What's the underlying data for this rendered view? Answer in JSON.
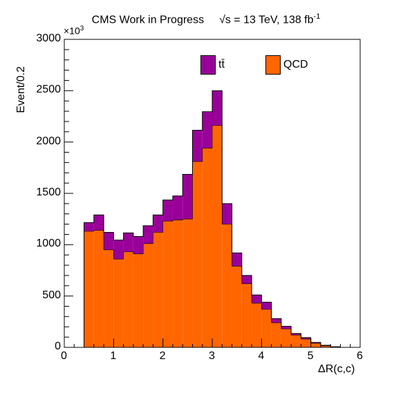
{
  "chart_data": {
    "type": "bar",
    "stacked": true,
    "title_left": "CMS Work in Progress",
    "title_sqrt": "√s",
    "title_energy": " = 13 TeV, 138 fb",
    "title_exp": "-1",
    "ylabel": "Event/0.2",
    "xlabel": "ΔR(c,c)",
    "y_multiplier_base": "×10",
    "y_multiplier_exp": "3",
    "xlim": [
      0,
      6
    ],
    "ylim": [
      0,
      3000
    ],
    "x_ticks": [
      "0",
      "1",
      "2",
      "3",
      "4",
      "5",
      "6"
    ],
    "y_ticks": [
      "0",
      "500",
      "1000",
      "1500",
      "2000",
      "2500",
      "3000"
    ],
    "bin_edges": [
      0.4,
      0.6,
      0.8,
      1.0,
      1.2,
      1.4,
      1.6,
      1.8,
      2.0,
      2.2,
      2.4,
      2.6,
      2.8,
      3.0,
      3.2,
      3.4,
      3.6,
      3.8,
      4.0,
      4.2,
      4.4,
      4.6,
      4.8,
      5.0,
      5.2,
      5.4,
      5.6
    ],
    "series": [
      {
        "name": "QCD",
        "color": "#ff6600",
        "values": [
          1130,
          1140,
          950,
          860,
          930,
          910,
          1010,
          1120,
          1230,
          1240,
          1250,
          1810,
          1940,
          2160,
          1200,
          790,
          620,
          430,
          370,
          240,
          180,
          120,
          80,
          40,
          15,
          4
        ]
      },
      {
        "name": "tt̄",
        "color": "#990099",
        "values": [
          85,
          150,
          170,
          185,
          185,
          170,
          175,
          170,
          205,
          235,
          435,
          305,
          355,
          340,
          200,
          130,
          80,
          80,
          70,
          40,
          25,
          15,
          15,
          8,
          5,
          2
        ]
      }
    ],
    "legend": [
      {
        "label": "tt̄",
        "color": "#990099"
      },
      {
        "label": "QCD",
        "color": "#ff6600"
      }
    ],
    "legend_position": "top-center",
    "grid": false
  }
}
